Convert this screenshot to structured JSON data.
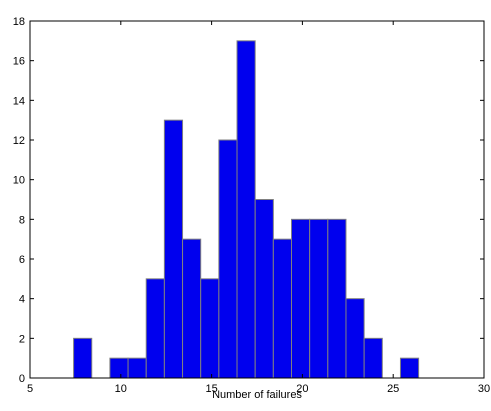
{
  "chart_data": {
    "type": "histogram",
    "x_label": "Number of failures",
    "bins": [
      7.4,
      8.4,
      9.4,
      10.4,
      11.4,
      12.4,
      13.4,
      14.4,
      15.4,
      16.4,
      17.4,
      18.4,
      19.4,
      20.4,
      21.4,
      22.4,
      23.4,
      24.4,
      25.4,
      26.4
    ],
    "counts": [
      2,
      0,
      1,
      1,
      5,
      13,
      7,
      5,
      12,
      17,
      9,
      7,
      8,
      8,
      8,
      4,
      2,
      0,
      1
    ],
    "color": "#0000ee",
    "edge_color": "#808080",
    "xlim": [
      5,
      30
    ],
    "xticks": [
      5,
      10,
      15,
      20,
      25,
      30
    ],
    "ylim": [
      0,
      18
    ],
    "yticks": [
      0,
      2,
      4,
      6,
      8,
      10,
      12,
      14,
      16,
      18
    ],
    "grid": false
  }
}
